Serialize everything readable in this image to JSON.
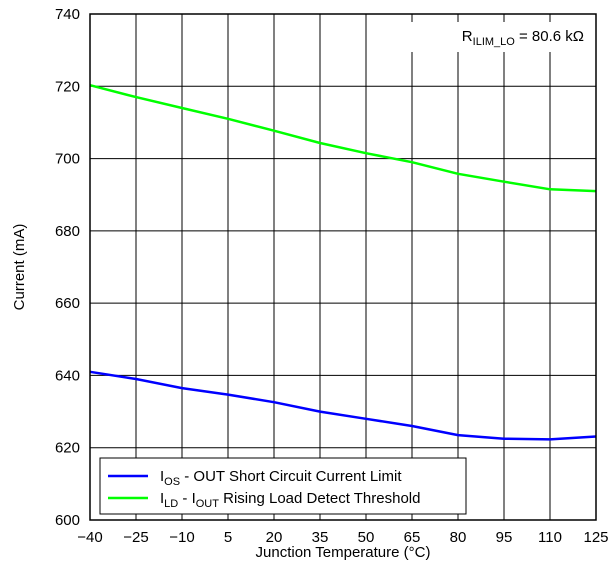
{
  "chart_data": {
    "type": "line",
    "xlabel": "Junction Temperature (°C)",
    "ylabel": "Current (mA)",
    "xlim": [
      -40,
      125
    ],
    "ylim": [
      600,
      740
    ],
    "xticks": [
      -40,
      -25,
      -10,
      5,
      20,
      35,
      50,
      65,
      80,
      95,
      110,
      125
    ],
    "yticks": [
      600,
      620,
      640,
      660,
      680,
      700,
      720,
      740
    ],
    "grid": true,
    "legend_position": "bottom-left",
    "annotation": {
      "main": "R",
      "sub": "ILIM_LO",
      "rest": " = 80.6 kΩ",
      "position": "top-right"
    },
    "series": [
      {
        "name": "I_OS - OUT Short Circuit Current Limit",
        "legend_main": "I",
        "legend_sub": "OS",
        "legend_rest": " - OUT Short Circuit Current Limit",
        "color": "#0000ff",
        "x": [
          -40,
          -25,
          -10,
          5,
          20,
          35,
          50,
          65,
          80,
          95,
          110,
          125
        ],
        "y": [
          641.0,
          639.0,
          636.5,
          634.7,
          632.6,
          630.0,
          628.0,
          626.0,
          623.5,
          622.5,
          622.3,
          623.1
        ]
      },
      {
        "name": "I_LD - I_OUT Rising Load Detect Threshold",
        "legend_main": "I",
        "legend_sub": "LD",
        "legend_rest": " - I",
        "legend_sub2": "OUT",
        "legend_rest2": " Rising Load Detect Threshold",
        "color": "#00ff00",
        "x": [
          -40,
          -25,
          -10,
          5,
          20,
          35,
          50,
          65,
          80,
          95,
          110,
          125
        ],
        "y": [
          720.3,
          717.0,
          714.0,
          711.0,
          707.7,
          704.3,
          701.5,
          699.0,
          695.8,
          693.6,
          691.5,
          691.0
        ]
      }
    ]
  }
}
